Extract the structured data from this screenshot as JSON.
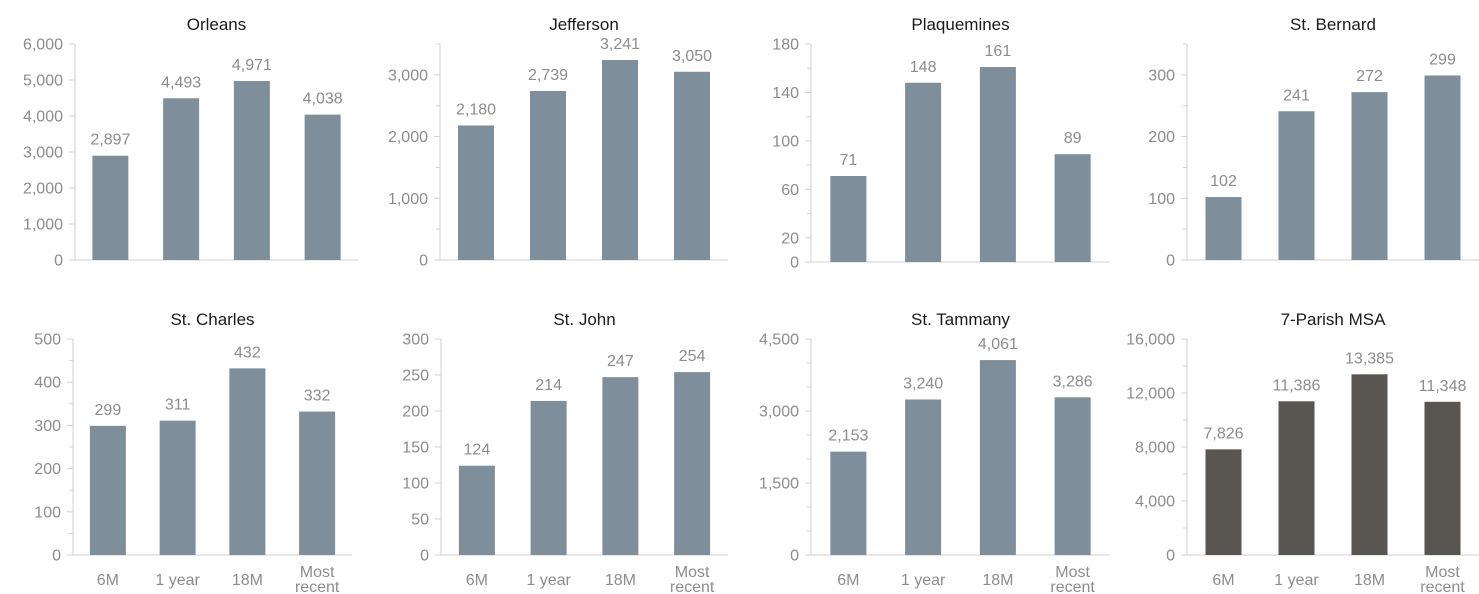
{
  "colors": {
    "parish_bar": "#7f8e9b",
    "msa_bar": "#595550",
    "axis": "#d0d0d0",
    "label": "#8c8c8c",
    "title": "#1a1a1a"
  },
  "chart_data": [
    {
      "type": "bar",
      "title": "Orleans",
      "categories": [
        "6M",
        "1 year",
        "18M",
        "Most recent"
      ],
      "values": [
        2897,
        4493,
        4971,
        4038
      ],
      "value_labels": [
        "2,897",
        "4,493",
        "4,971",
        "4,038"
      ],
      "ylim": [
        0,
        6000
      ],
      "yticks": [
        0,
        1000,
        2000,
        3000,
        4000,
        5000,
        6000
      ],
      "ytick_labels": [
        "0",
        "1,000",
        "2,000",
        "3,000",
        "4,000",
        "5,000",
        "6,000"
      ],
      "show_xlabels": false,
      "color": "#7f8e9b"
    },
    {
      "type": "bar",
      "title": "Jefferson",
      "categories": [
        "6M",
        "1 year",
        "18M",
        "Most recent"
      ],
      "values": [
        2180,
        2739,
        3241,
        3050
      ],
      "value_labels": [
        "2,180",
        "2,739",
        "3,241",
        "3,050"
      ],
      "ylim": [
        0,
        3500
      ],
      "yticks": [
        0,
        1000,
        2000,
        3000
      ],
      "ytick_labels": [
        "0",
        "1,000",
        "2,000",
        "3,000"
      ],
      "minor_ticks": [
        500,
        1500,
        2500,
        3500
      ],
      "show_xlabels": false,
      "color": "#7f8e9b"
    },
    {
      "type": "bar",
      "title": "Plaquemines",
      "categories": [
        "6M",
        "1 year",
        "18M",
        "Most recent"
      ],
      "values": [
        71,
        148,
        161,
        89
      ],
      "value_labels": [
        "71",
        "148",
        "161",
        "89"
      ],
      "ylim": [
        0,
        180
      ],
      "yticks": [
        0,
        20,
        60,
        100,
        140,
        180
      ],
      "ytick_labels": [
        "0",
        "20",
        "60",
        "100",
        "140",
        "180"
      ],
      "minor_ticks": [
        40,
        80,
        120,
        160
      ],
      "show_xlabels": false,
      "color": "#7f8e9b"
    },
    {
      "type": "bar",
      "title": "St. Bernard",
      "categories": [
        "6M",
        "1 year",
        "18M",
        "Most recent"
      ],
      "values": [
        102,
        241,
        272,
        299
      ],
      "value_labels": [
        "102",
        "241",
        "272",
        "299"
      ],
      "ylim": [
        0,
        350
      ],
      "yticks": [
        0,
        100,
        200,
        300
      ],
      "ytick_labels": [
        "0",
        "100",
        "200",
        "300"
      ],
      "minor_ticks": [
        50,
        150,
        250,
        350
      ],
      "show_xlabels": false,
      "color": "#7f8e9b"
    },
    {
      "type": "bar",
      "title": "St. Charles",
      "categories": [
        "6M",
        "1 year",
        "18M",
        "Most recent"
      ],
      "values": [
        299,
        311,
        432,
        332
      ],
      "value_labels": [
        "299",
        "311",
        "432",
        "332"
      ],
      "ylim": [
        0,
        500
      ],
      "yticks": [
        0,
        100,
        200,
        300,
        400,
        500
      ],
      "ytick_labels": [
        "0",
        "100",
        "200",
        "300",
        "400",
        "500"
      ],
      "minor_ticks": [
        50,
        150,
        250,
        350,
        450
      ],
      "show_xlabels": true,
      "color": "#7f8e9b"
    },
    {
      "type": "bar",
      "title": "St. John",
      "categories": [
        "6M",
        "1 year",
        "18M",
        "Most recent"
      ],
      "values": [
        124,
        214,
        247,
        254
      ],
      "value_labels": [
        "124",
        "214",
        "247",
        "254"
      ],
      "ylim": [
        0,
        300
      ],
      "yticks": [
        0,
        50,
        100,
        150,
        200,
        250,
        300
      ],
      "ytick_labels": [
        "0",
        "50",
        "100",
        "150",
        "200",
        "250",
        "300"
      ],
      "show_xlabels": true,
      "color": "#7f8e9b"
    },
    {
      "type": "bar",
      "title": "St. Tammany",
      "categories": [
        "6M",
        "1 year",
        "18M",
        "Most recent"
      ],
      "values": [
        2153,
        3240,
        4061,
        3286
      ],
      "value_labels": [
        "2,153",
        "3,240",
        "4,061",
        "3,286"
      ],
      "ylim": [
        0,
        4500
      ],
      "yticks": [
        0,
        1500,
        3000,
        4500
      ],
      "ytick_labels": [
        "0",
        "1,500",
        "3,000",
        "4,500"
      ],
      "minor_ticks": [
        500,
        1000,
        2000,
        2500,
        3500,
        4000
      ],
      "show_xlabels": true,
      "color": "#7f8e9b"
    },
    {
      "type": "bar",
      "title": "7-Parish MSA",
      "categories": [
        "6M",
        "1 year",
        "18M",
        "Most recent"
      ],
      "values": [
        7826,
        11386,
        13385,
        11348
      ],
      "value_labels": [
        "7,826",
        "11,386",
        "13,385",
        "11,348"
      ],
      "ylim": [
        0,
        16000
      ],
      "yticks": [
        0,
        4000,
        8000,
        12000,
        16000
      ],
      "ytick_labels": [
        "0",
        "4,000",
        "8,000",
        "12,000",
        "16,000"
      ],
      "minor_ticks": [
        2000,
        6000,
        10000,
        14000
      ],
      "show_xlabels": true,
      "color": "#595550"
    }
  ]
}
